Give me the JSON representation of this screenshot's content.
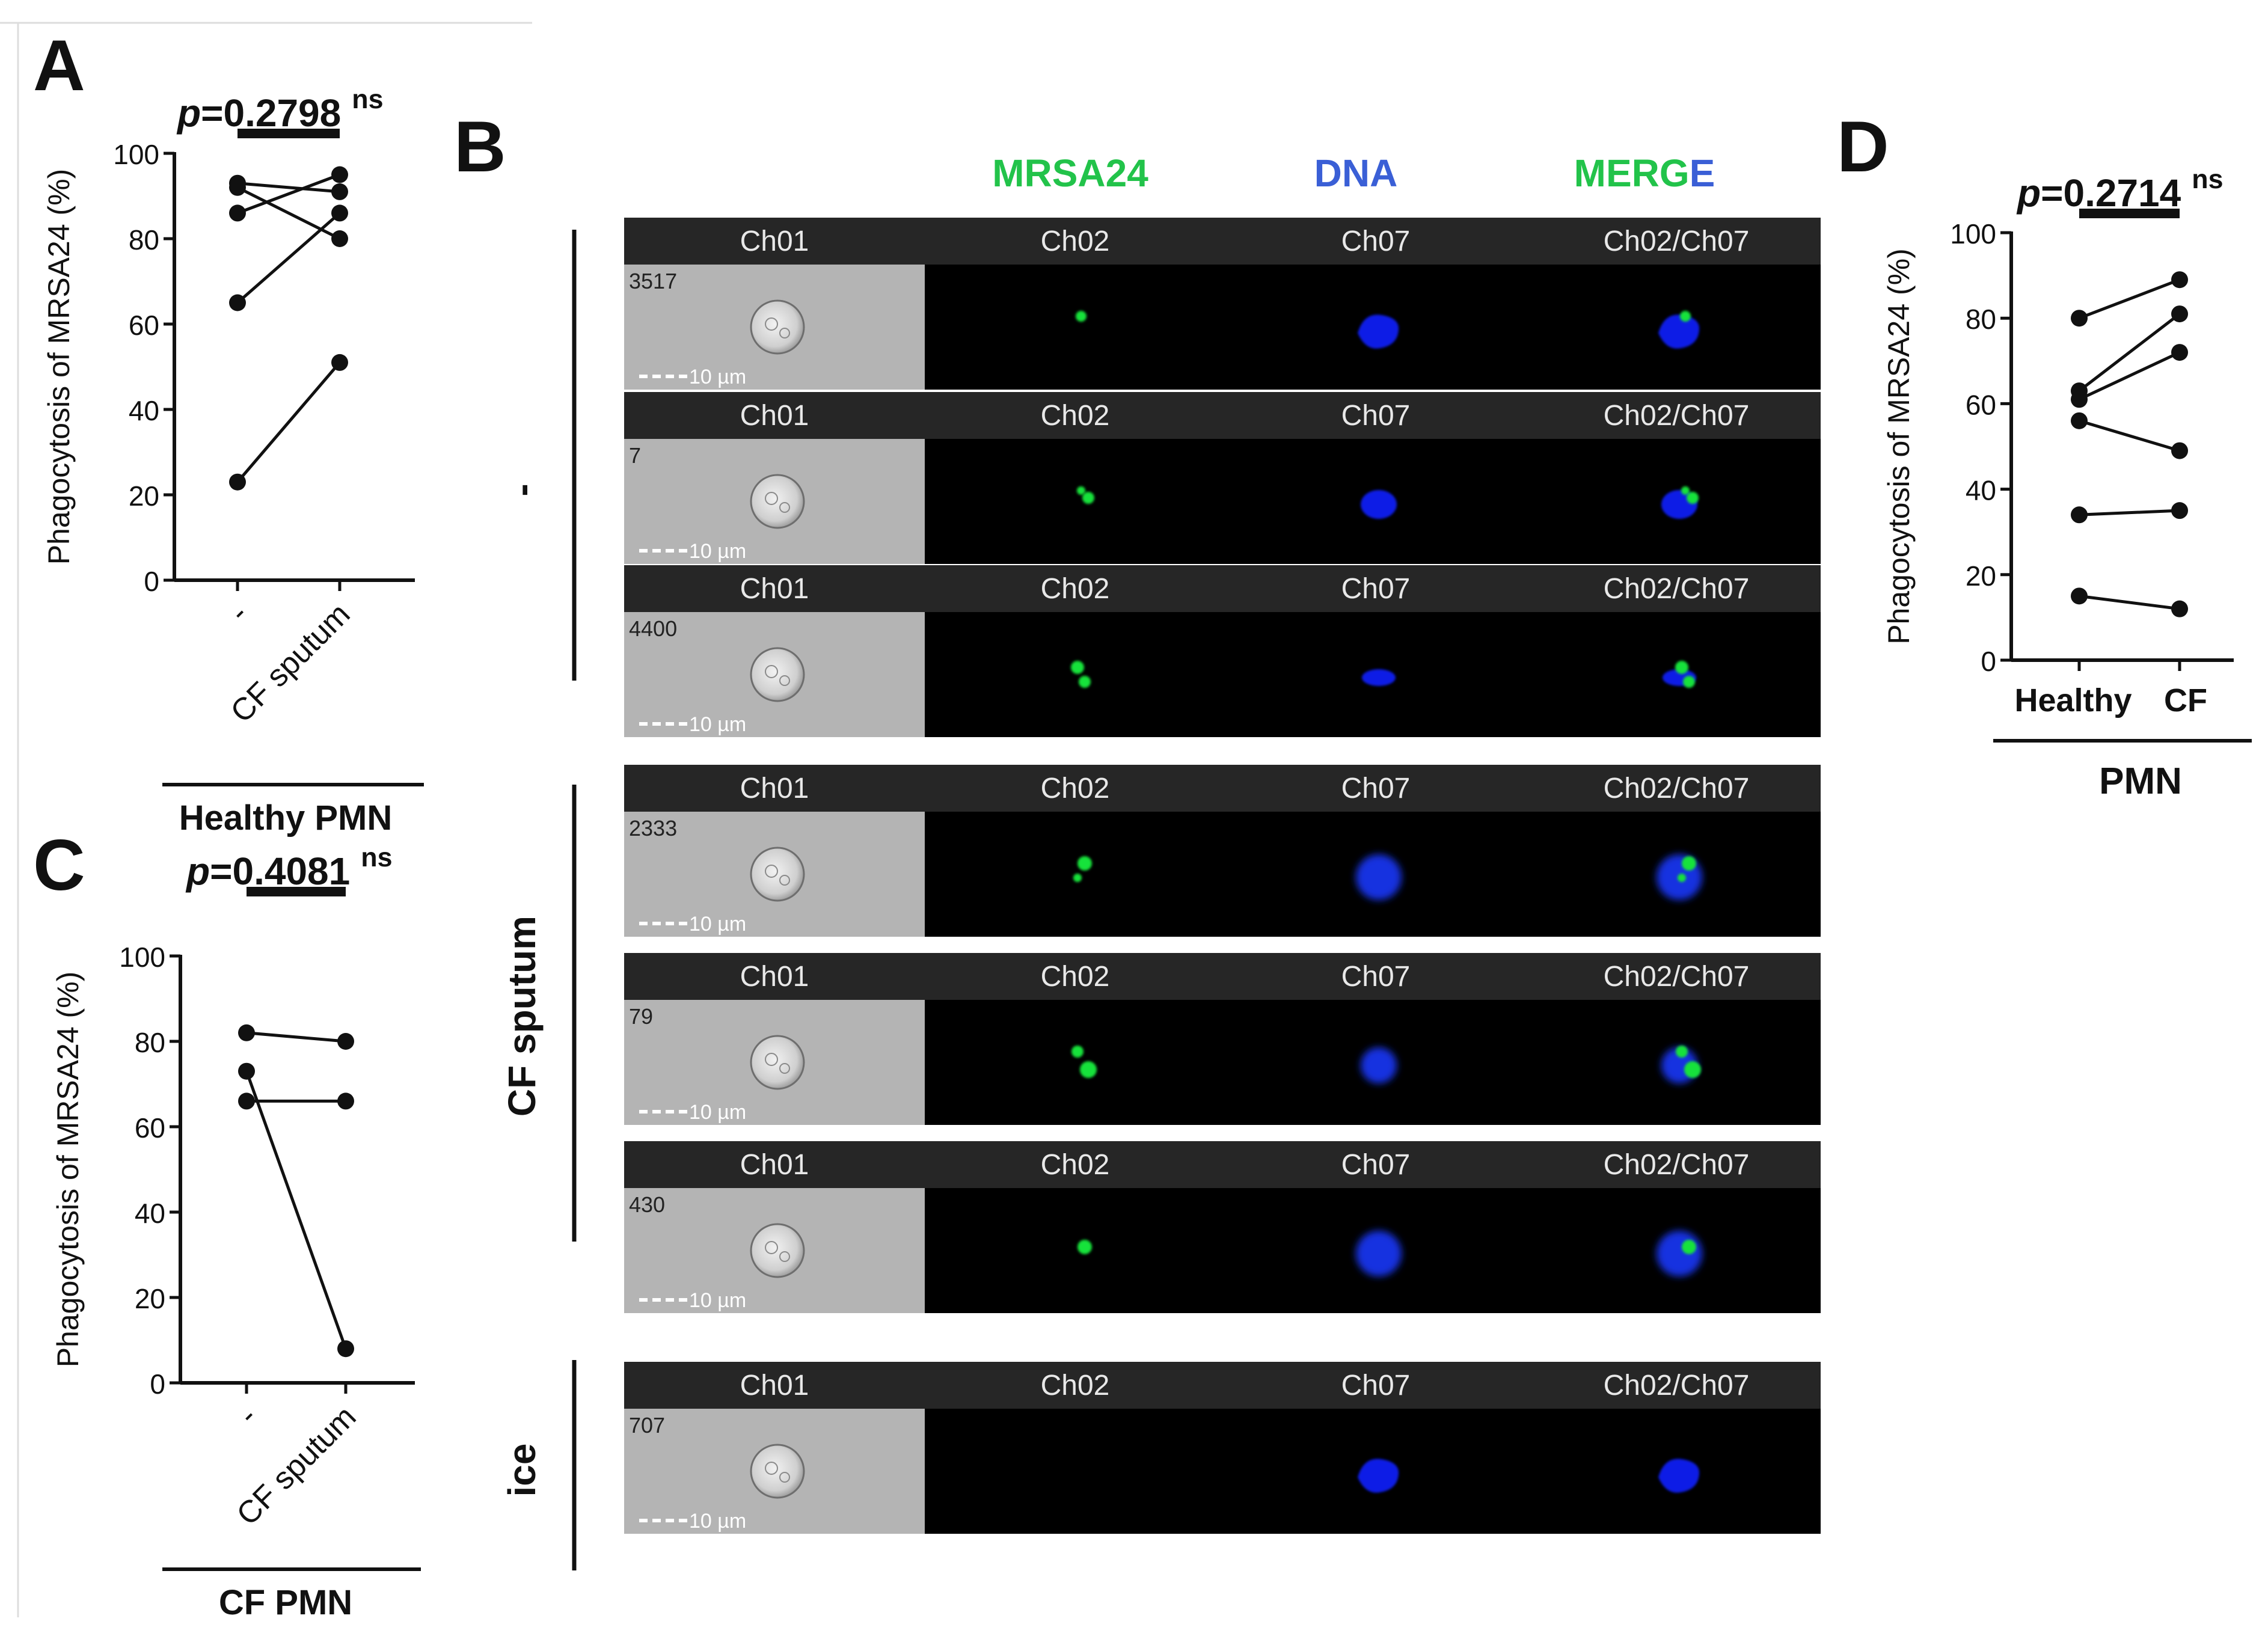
{
  "panels": {
    "A": {
      "letter": "A",
      "group": "Healthy PMN"
    },
    "B": {
      "letter": "B"
    },
    "C": {
      "letter": "C",
      "group": "CF PMN"
    },
    "D": {
      "letter": "D",
      "group": "PMN"
    }
  },
  "chart_data": [
    {
      "panel": "A",
      "type": "line",
      "ylabel": "Phagocytosis of  MRSA24 (%)",
      "categories": [
        "-",
        "CF sputum"
      ],
      "ylim": [
        0,
        100
      ],
      "yticks": [
        0,
        20,
        40,
        60,
        80,
        100
      ],
      "pvalue": "0.2798",
      "sig": "ns",
      "series": [
        {
          "values": [
            93,
            91
          ]
        },
        {
          "values": [
            86,
            95
          ]
        },
        {
          "values": [
            65,
            86
          ]
        },
        {
          "values": [
            92,
            80
          ]
        },
        {
          "values": [
            23,
            51
          ]
        }
      ]
    },
    {
      "panel": "C",
      "type": "line",
      "ylabel": "Phagocytosis of  MRSA24 (%)",
      "categories": [
        "-",
        "CF sputum"
      ],
      "ylim": [
        0,
        100
      ],
      "yticks": [
        0,
        20,
        40,
        60,
        80,
        100
      ],
      "pvalue": "0.4081",
      "sig": "ns",
      "series": [
        {
          "values": [
            82,
            80
          ]
        },
        {
          "values": [
            66,
            66
          ]
        },
        {
          "values": [
            73,
            8
          ]
        }
      ]
    },
    {
      "panel": "D",
      "type": "line",
      "ylabel": "Phagocytosis of  MRSA24 (%)",
      "categories": [
        "Healthy",
        "CF"
      ],
      "ylim": [
        0,
        100
      ],
      "yticks": [
        0,
        20,
        40,
        60,
        80,
        100
      ],
      "pvalue": "0.2714",
      "sig": "ns",
      "series": [
        {
          "values": [
            80,
            89
          ]
        },
        {
          "values": [
            63,
            81
          ]
        },
        {
          "values": [
            61,
            72
          ]
        },
        {
          "values": [
            56,
            49
          ]
        },
        {
          "values": [
            34,
            35
          ]
        },
        {
          "values": [
            15,
            12
          ]
        }
      ]
    }
  ],
  "imaging": {
    "column_headers": [
      {
        "text": "MRSA24",
        "color": "#22c34a"
      },
      {
        "text": "DNA",
        "color": "#3a5fd6"
      },
      {
        "text": "MERGE",
        "color": "merge"
      }
    ],
    "merge_part1": "MERGE",
    "channel_labels": [
      "Ch01",
      "Ch02",
      "Ch07",
      "Ch02/Ch07"
    ],
    "scale_bar": "10 µm",
    "groups": [
      {
        "label": "-",
        "cells": [
          {
            "id": "3517",
            "green": [
              [
                0.5,
                0.35,
                9
              ]
            ],
            "blue": "shape1"
          },
          {
            "id": "7",
            "green": [
              [
                0.5,
                0.35,
                7
              ],
              [
                0.6,
                0.45,
                10
              ]
            ],
            "blue": "oval"
          },
          {
            "id": "4400",
            "green": [
              [
                0.45,
                0.4,
                11
              ],
              [
                0.55,
                0.6,
                10
              ]
            ],
            "blue": "flat"
          }
        ]
      },
      {
        "label": "CF sputum",
        "cells": [
          {
            "id": "2333",
            "green": [
              [
                0.55,
                0.35,
                12
              ],
              [
                0.45,
                0.55,
                7
              ]
            ],
            "blue": "diffuse"
          },
          {
            "id": "79",
            "green": [
              [
                0.45,
                0.35,
                10
              ],
              [
                0.6,
                0.6,
                14
              ]
            ],
            "blue": "diffuse-small"
          },
          {
            "id": "430",
            "green": [
              [
                0.55,
                0.45,
                12
              ]
            ],
            "blue": "diffuse"
          }
        ]
      },
      {
        "label": "ice",
        "cells": [
          {
            "id": "707",
            "green": [],
            "blue": "shape1"
          }
        ]
      }
    ]
  }
}
